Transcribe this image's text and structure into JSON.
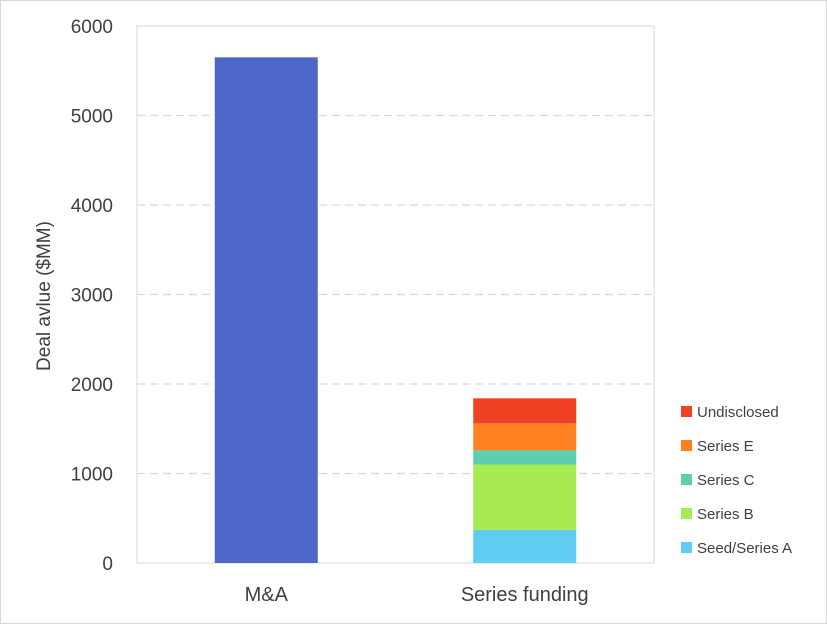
{
  "chart_data": {
    "type": "bar",
    "stacked": true,
    "title": "",
    "xlabel": "",
    "ylabel": "Deal avlue ($MM)",
    "ylim": [
      0,
      6000
    ],
    "yticks": [
      "0",
      "1000",
      "2000",
      "3000",
      "4000",
      "5000",
      "6000"
    ],
    "categories": [
      "M&A",
      "Series funding"
    ],
    "grid": "horizontal dashed",
    "legend_position": "right",
    "series": [
      {
        "name": "M&A",
        "color": "#4E67C8",
        "values": [
          5650,
          0
        ],
        "in_legend": false
      },
      {
        "name": "Seed/Series A",
        "color": "#5ECCF3",
        "values": [
          0,
          370
        ],
        "in_legend": true
      },
      {
        "name": "Series B",
        "color": "#A7EA52",
        "values": [
          0,
          730
        ],
        "in_legend": true
      },
      {
        "name": "Series C",
        "color": "#5DCEAF",
        "values": [
          0,
          160
        ],
        "in_legend": true
      },
      {
        "name": "Series E",
        "color": "#FF8021",
        "values": [
          0,
          300
        ],
        "in_legend": true
      },
      {
        "name": "Undisclosed",
        "color": "#F14124",
        "values": [
          0,
          280
        ],
        "in_legend": true
      }
    ]
  }
}
